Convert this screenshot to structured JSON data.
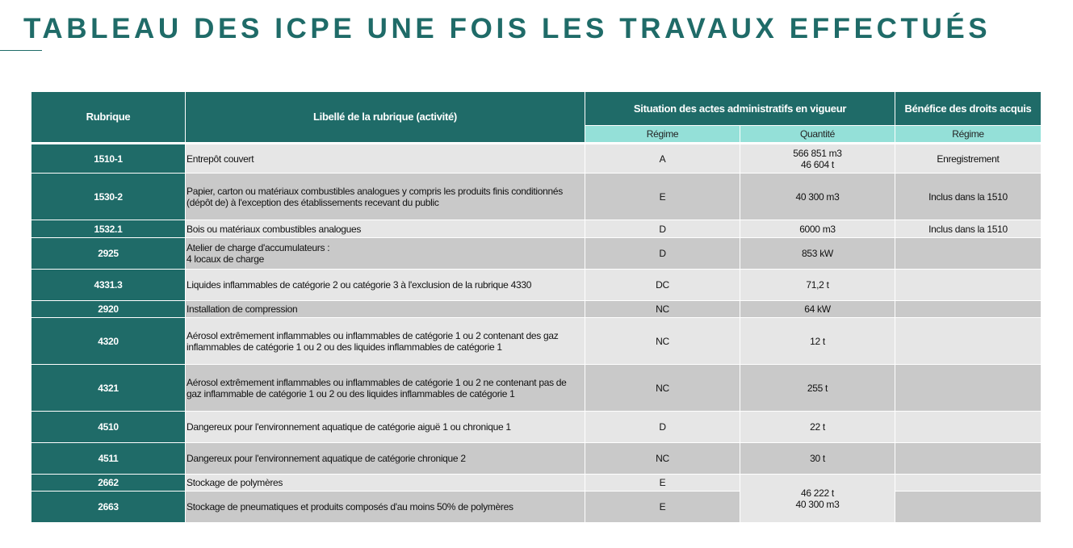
{
  "title": "TABLEAU DES ICPE UNE FOIS LES TRAVAUX EFFECTUÉS",
  "headers": {
    "rubrique": "Rubrique",
    "libelle": "Libellé de la rubrique (activité)",
    "situation": "Situation des actes administratifs en vigueur",
    "benefice": "Bénéfice des droits acquis",
    "regime": "Régime",
    "quantite": "Quantité",
    "regime2": "Régime"
  },
  "rows": [
    {
      "rubrique": "1510-1",
      "libelle": "Entrepôt couvert",
      "regime": "A",
      "quantite": "566 851 m3\n46 604 t",
      "benefice": "Enregistrement"
    },
    {
      "rubrique": "1530-2",
      "libelle": "Papier, carton ou matériaux combustibles analogues y compris les produits finis conditionnés\n(dépôt de) à l'exception des établissements recevant du public",
      "regime": "E",
      "quantite": "40 300 m3",
      "benefice": "Inclus dans la 1510"
    },
    {
      "rubrique": "1532.1",
      "libelle": "Bois ou matériaux combustibles analogues",
      "regime": "D",
      "quantite": "6000 m3",
      "benefice": "Inclus dans la 1510"
    },
    {
      "rubrique": "2925",
      "libelle": "Atelier de charge d'accumulateurs :\n4 locaux de charge",
      "regime": "D",
      "quantite": "853 kW",
      "benefice": ""
    },
    {
      "rubrique": "4331.3",
      "libelle": "Liquides inflammables de catégorie 2 ou catégorie 3 à l'exclusion de la rubrique 4330",
      "regime": "DC",
      "quantite": "71,2 t",
      "benefice": ""
    },
    {
      "rubrique": "2920",
      "libelle": "Installation de compression",
      "regime": "NC",
      "quantite": "64 kW",
      "benefice": ""
    },
    {
      "rubrique": "4320",
      "libelle": "Aérosol extrêmement inflammables ou inflammables de catégorie 1 ou 2 contenant des gaz\ninflammables de catégorie 1 ou 2 ou des liquides inflammables de catégorie 1",
      "regime": "NC",
      "quantite": "12 t",
      "benefice": ""
    },
    {
      "rubrique": "4321",
      "libelle": "Aérosol extrêmement inflammables ou inflammables de catégorie 1 ou 2 ne contenant pas de\ngaz inflammable de catégorie 1 ou 2 ou des liquides inflammables de catégorie 1",
      "regime": "NC",
      "quantite": "255 t",
      "benefice": ""
    },
    {
      "rubrique": "4510",
      "libelle": "Dangereux pour l'environnement aquatique de catégorie aiguë 1 ou chronique 1",
      "regime": "D",
      "quantite": "22 t",
      "benefice": ""
    },
    {
      "rubrique": "4511",
      "libelle": "Dangereux pour l'environnement aquatique de catégorie chronique 2",
      "regime": "NC",
      "quantite": "30 t",
      "benefice": ""
    },
    {
      "rubrique": "2662",
      "libelle": "Stockage de polymères",
      "regime": "E",
      "quantite": "46 222 t\n40 300 m3",
      "benefice": ""
    },
    {
      "rubrique": "2663",
      "libelle": "Stockage de pneumatiques et produits composés d'au moins 50% de polymères",
      "regime": "E",
      "quantite": null,
      "benefice": ""
    }
  ]
}
